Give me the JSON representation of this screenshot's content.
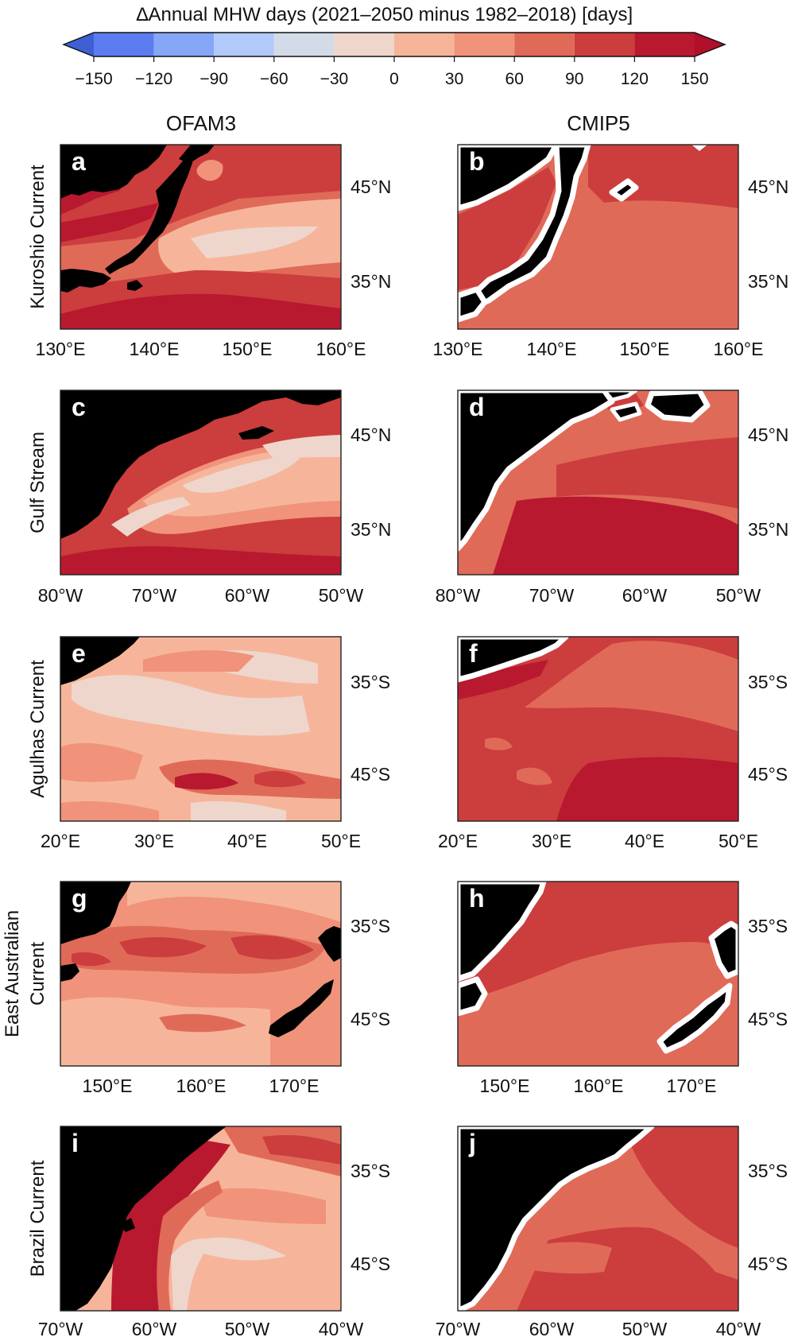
{
  "colorbar": {
    "title": "∆Annual MHW days (2021–2050 minus 1982–2018) [days]",
    "ticks": [
      "−150",
      "−120",
      "−90",
      "−60",
      "−30",
      "0",
      "30",
      "60",
      "90",
      "120",
      "150"
    ],
    "colors": [
      "#3f5fd4",
      "#5b7df0",
      "#86a6f8",
      "#b2c9fb",
      "#d3dbe8",
      "#eed6cc",
      "#f6b59a",
      "#f0937a",
      "#e06a58",
      "#cc3d3d",
      "#b20f2a"
    ]
  },
  "columns": {
    "left": "OFAM3",
    "right": "CMIP5"
  },
  "palette": {
    "land": "#000000",
    "coast": "#ffffff",
    "frame": "#222222"
  },
  "rows": [
    {
      "label_lines": [
        "Kuroshio Current"
      ],
      "lat_labels": [
        "45°N",
        "35°N"
      ],
      "lon_labels": [
        "130°E",
        "140°E",
        "150°E",
        "160°E"
      ],
      "left": {
        "letter": "a"
      },
      "right": {
        "letter": "b"
      }
    },
    {
      "label_lines": [
        "Gulf Stream"
      ],
      "lat_labels": [
        "45°N",
        "35°N"
      ],
      "lon_labels": [
        "80°W",
        "70°W",
        "60°W",
        "50°W"
      ],
      "left": {
        "letter": "c"
      },
      "right": {
        "letter": "d"
      }
    },
    {
      "label_lines": [
        "Agulhas Current"
      ],
      "lat_labels": [
        "35°S",
        "45°S"
      ],
      "lon_labels": [
        "20°E",
        "30°E",
        "40°E",
        "50°E"
      ],
      "left": {
        "letter": "e"
      },
      "right": {
        "letter": "f"
      }
    },
    {
      "label_lines": [
        "East Australian",
        "Current"
      ],
      "lat_labels": [
        "35°S",
        "45°S"
      ],
      "lon_labels": [
        "150°E",
        "160°E",
        "170°E"
      ],
      "left": {
        "letter": "g"
      },
      "right": {
        "letter": "h"
      }
    },
    {
      "label_lines": [
        "Brazil Current"
      ],
      "lat_labels": [
        "35°S",
        "45°S"
      ],
      "lon_labels": [
        "70°W",
        "60°W",
        "50°W",
        "40°W"
      ],
      "left": {
        "letter": "i"
      },
      "right": {
        "letter": "j"
      }
    }
  ]
}
